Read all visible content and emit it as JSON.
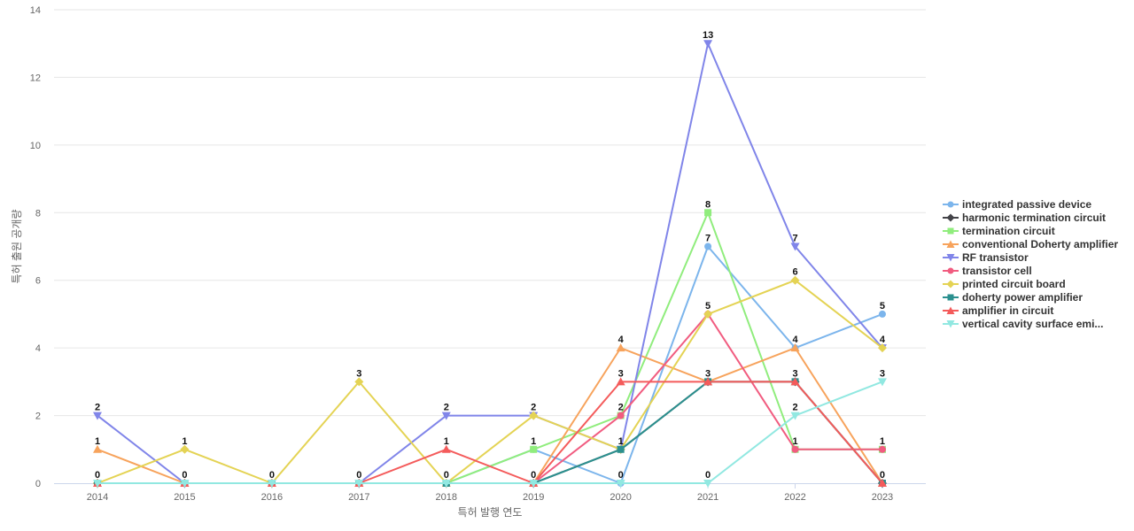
{
  "chart_data": {
    "type": "line",
    "xlabel": "특허 발행 연도",
    "ylabel": "특허 출원 공개량",
    "ylim": [
      0,
      14
    ],
    "yticks": [
      0,
      2,
      4,
      6,
      8,
      10,
      12,
      14
    ],
    "grid": true,
    "legend_position": "right",
    "categories": [
      "2014",
      "2015",
      "2016",
      "2017",
      "2018",
      "2019",
      "2020",
      "2021",
      "2022",
      "2023"
    ],
    "series": [
      {
        "name": "integrated passive device",
        "color": "#7cb5ec",
        "marker": "circle",
        "values": [
          0,
          0,
          0,
          0,
          0,
          1,
          0,
          7,
          4,
          5
        ]
      },
      {
        "name": "harmonic termination circuit",
        "color": "#434348",
        "marker": "diamond",
        "values": [
          0,
          0,
          0,
          0,
          0,
          0,
          1,
          3,
          3,
          0
        ]
      },
      {
        "name": "termination circuit",
        "color": "#90ed7d",
        "marker": "square",
        "values": [
          0,
          0,
          0,
          0,
          0,
          1,
          2,
          8,
          1,
          1
        ]
      },
      {
        "name": "conventional Doherty amplifier",
        "color": "#f7a35c",
        "marker": "triangle",
        "values": [
          1,
          0,
          0,
          0,
          0,
          0,
          4,
          3,
          4,
          0
        ]
      },
      {
        "name": "RF transistor",
        "color": "#8085e9",
        "marker": "triangle-down",
        "values": [
          2,
          0,
          0,
          0,
          2,
          2,
          1,
          13,
          7,
          4
        ]
      },
      {
        "name": "transistor cell",
        "color": "#f15c80",
        "marker": "circle",
        "values": [
          0,
          0,
          0,
          0,
          0,
          0,
          2,
          5,
          1,
          1
        ]
      },
      {
        "name": "printed circuit board",
        "color": "#e4d354",
        "marker": "diamond",
        "values": [
          0,
          1,
          0,
          3,
          0,
          2,
          1,
          5,
          6,
          4
        ]
      },
      {
        "name": "doherty power amplifier",
        "color": "#2b908f",
        "marker": "square",
        "values": [
          0,
          0,
          0,
          0,
          0,
          0,
          1,
          3,
          3,
          0
        ]
      },
      {
        "name": "amplifier in circuit",
        "color": "#f45b5b",
        "marker": "triangle",
        "values": [
          0,
          0,
          0,
          0,
          1,
          0,
          3,
          3,
          3,
          0
        ]
      },
      {
        "name": "vertical cavity surface emi...",
        "color": "#91e8e1",
        "marker": "triangle-down",
        "values": [
          0,
          0,
          0,
          0,
          0,
          0,
          0,
          0,
          2,
          3
        ]
      }
    ],
    "data_labels": [
      {
        "x": "2014",
        "series": "RF transistor",
        "text": "2"
      },
      {
        "x": "2014",
        "series": "conventional Doherty amplifier",
        "text": "1"
      },
      {
        "x": "2014",
        "series": "integrated passive device",
        "text": "0"
      },
      {
        "x": "2015",
        "series": "printed circuit board",
        "text": "1"
      },
      {
        "x": "2015",
        "series": "integrated passive device",
        "text": "0"
      },
      {
        "x": "2016",
        "series": "integrated passive device",
        "text": "0"
      },
      {
        "x": "2017",
        "series": "printed circuit board",
        "text": "3"
      },
      {
        "x": "2017",
        "series": "integrated passive device",
        "text": "0"
      },
      {
        "x": "2018",
        "series": "RF transistor",
        "text": "2"
      },
      {
        "x": "2018",
        "series": "amplifier in circuit",
        "text": "1"
      },
      {
        "x": "2018",
        "series": "integrated passive device",
        "text": "0"
      },
      {
        "x": "2019",
        "series": "printed circuit board",
        "text": "2"
      },
      {
        "x": "2019",
        "series": "integrated passive device",
        "text": "1"
      },
      {
        "x": "2019",
        "series": "transistor cell",
        "text": "0"
      },
      {
        "x": "2020",
        "series": "conventional Doherty amplifier",
        "text": "4"
      },
      {
        "x": "2020",
        "series": "amplifier in circuit",
        "text": "3"
      },
      {
        "x": "2020",
        "series": "transistor cell",
        "text": "2"
      },
      {
        "x": "2020",
        "series": "doherty power amplifier",
        "text": "1"
      },
      {
        "x": "2020",
        "series": "integrated passive device",
        "text": "0"
      },
      {
        "x": "2021",
        "series": "RF transistor",
        "text": "13"
      },
      {
        "x": "2021",
        "series": "termination circuit",
        "text": "8"
      },
      {
        "x": "2021",
        "series": "integrated passive device",
        "text": "7"
      },
      {
        "x": "2021",
        "series": "transistor cell",
        "text": "5"
      },
      {
        "x": "2021",
        "series": "doherty power amplifier",
        "text": "3"
      },
      {
        "x": "2021",
        "series": "vertical cavity surface emi...",
        "text": "0"
      },
      {
        "x": "2022",
        "series": "RF transistor",
        "text": "7"
      },
      {
        "x": "2022",
        "series": "printed circuit board",
        "text": "6"
      },
      {
        "x": "2022",
        "series": "integrated passive device",
        "text": "4"
      },
      {
        "x": "2022",
        "series": "doherty power amplifier",
        "text": "3"
      },
      {
        "x": "2022",
        "series": "vertical cavity surface emi...",
        "text": "2"
      },
      {
        "x": "2022",
        "series": "termination circuit",
        "text": "1"
      },
      {
        "x": "2023",
        "series": "integrated passive device",
        "text": "5"
      },
      {
        "x": "2023",
        "series": "RF transistor",
        "text": "4"
      },
      {
        "x": "2023",
        "series": "vertical cavity surface emi...",
        "text": "3"
      },
      {
        "x": "2023",
        "series": "termination circuit",
        "text": "1"
      },
      {
        "x": "2023",
        "series": "doherty power amplifier",
        "text": "0"
      }
    ]
  }
}
